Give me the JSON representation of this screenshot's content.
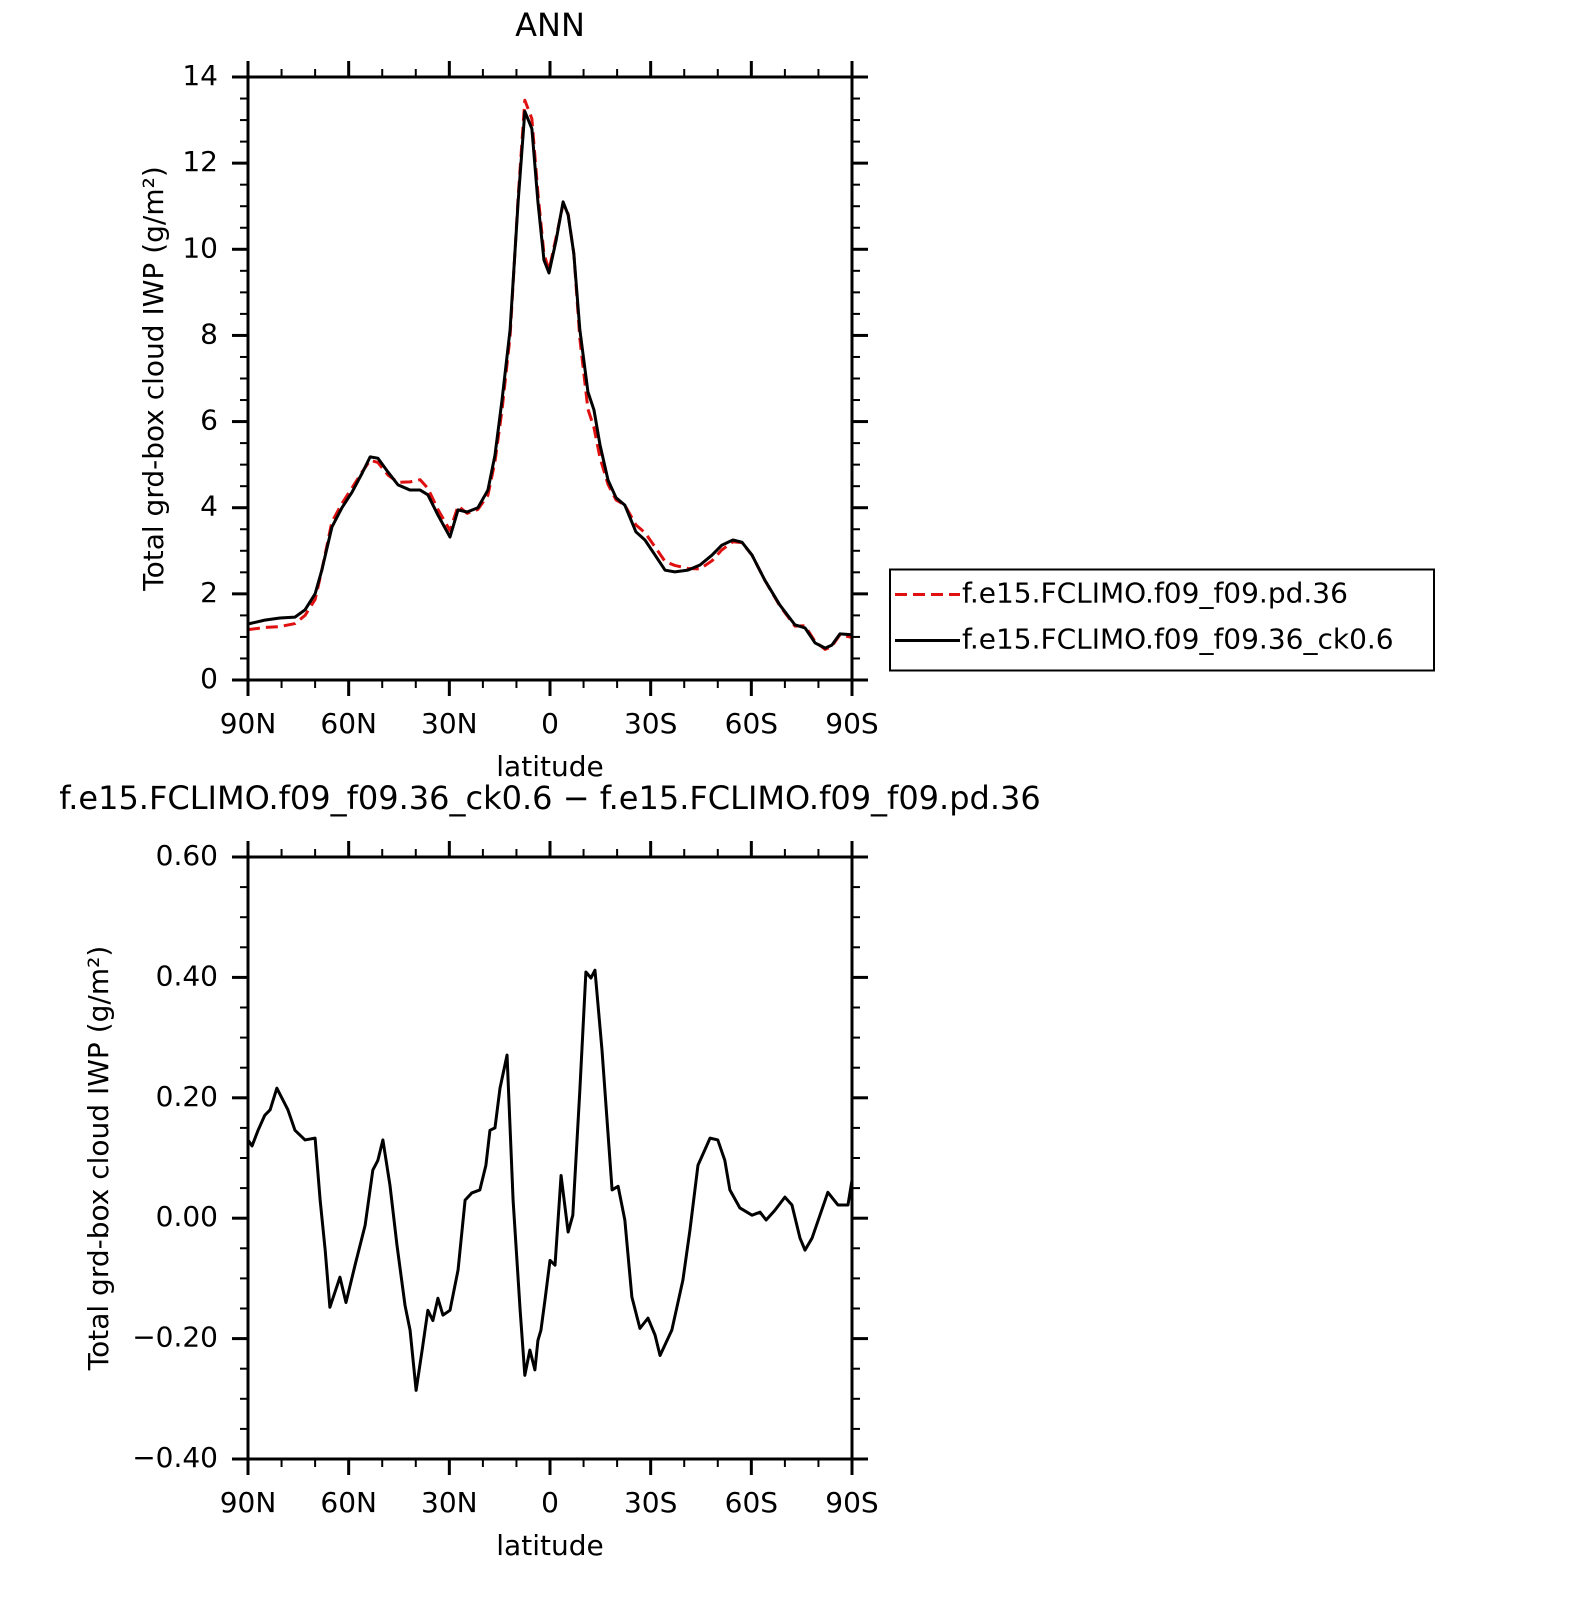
{
  "chart_data": [
    {
      "type": "line",
      "title": "ANN",
      "x_label": "latitude",
      "y_label": "Total grd-box cloud IWP (g/m²)",
      "x": [
        90,
        85,
        80.5,
        76,
        73,
        70,
        68,
        65,
        62,
        59,
        56,
        53.6,
        51.3,
        48.3,
        45.3,
        41.7,
        38.7,
        36.4,
        33.4,
        29.8,
        27.4,
        24.7,
        21.5,
        18.5,
        16.4,
        14.3,
        11.9,
        9.5,
        7.5,
        5.4,
        3.6,
        1.8,
        0.3,
        -1.8,
        -3.9,
        -5.4,
        -7.1,
        -8.9,
        -11.3,
        -13.1,
        -14.9,
        -17.3,
        -19.7,
        -22.3,
        -25.6,
        -28.3,
        -31.3,
        -34.3,
        -37.2,
        -41.1,
        -44.7,
        -48.3,
        -51.2,
        -54.5,
        -57.2,
        -60.2,
        -64,
        -68.5,
        -73,
        -76,
        -79,
        -82,
        -84,
        -86.4,
        -90
      ],
      "series": [
        {
          "name": "f.e15.FCLIMO.f09_f09.pd.36",
          "color": "#e01010",
          "dash": true,
          "values": [
            1.17,
            1.22,
            1.24,
            1.31,
            1.5,
            1.87,
            2.55,
            3.67,
            4.1,
            4.46,
            4.83,
            5.1,
            5.05,
            4.76,
            4.59,
            4.6,
            4.65,
            4.45,
            3.96,
            3.47,
            4.04,
            3.87,
            3.96,
            4.29,
            5.07,
            6.27,
            7.98,
            11.2,
            13.46,
            13.03,
            11.3,
            9.89,
            9.52,
            10.27,
            11.05,
            10.82,
            9.9,
            7.92,
            6.29,
            5.86,
            5.16,
            4.54,
            4.18,
            4.06,
            3.6,
            3.42,
            3.09,
            2.75,
            2.66,
            2.59,
            2.58,
            2.77,
            3.02,
            3.21,
            3.19,
            2.9,
            2.32,
            1.72,
            1.25,
            1.26,
            0.89,
            0.71,
            0.78,
            1.05,
            0.99
          ]
        },
        {
          "name": "f.e15.FCLIMO.f09_f09.36_ck0.6",
          "color": "#000000",
          "dash": false,
          "values": [
            1.3,
            1.39,
            1.44,
            1.46,
            1.63,
            2.0,
            2.55,
            3.55,
            4.0,
            4.36,
            4.8,
            5.18,
            5.15,
            4.83,
            4.53,
            4.41,
            4.41,
            4.3,
            3.83,
            3.32,
            3.95,
            3.9,
            4.0,
            4.41,
            5.22,
            6.5,
            8.13,
            11.1,
            13.2,
            12.8,
            11.1,
            9.75,
            9.45,
            10.2,
            11.1,
            10.8,
            9.9,
            8.13,
            6.69,
            6.27,
            5.46,
            4.64,
            4.23,
            4.06,
            3.44,
            3.25,
            2.9,
            2.55,
            2.51,
            2.55,
            2.67,
            2.9,
            3.13,
            3.25,
            3.2,
            2.9,
            2.32,
            1.74,
            1.28,
            1.21,
            0.86,
            0.74,
            0.81,
            1.07,
            1.05
          ]
        }
      ],
      "xlim": [
        90,
        -90
      ],
      "xticks": [
        {
          "value": 90,
          "label": "90N"
        },
        {
          "value": 60,
          "label": "60N"
        },
        {
          "value": 30,
          "label": "30N"
        },
        0,
        {
          "value": -30,
          "label": "30S"
        },
        {
          "value": -60,
          "label": "60S"
        },
        {
          "value": -90,
          "label": "90S"
        }
      ],
      "ylim": [
        0,
        14
      ],
      "yticks": [
        0,
        2,
        4,
        6,
        8,
        10,
        12,
        14
      ],
      "x_minor_per_interval": 3,
      "y_minor_per_interval": 4,
      "legend": "right"
    },
    {
      "type": "line",
      "title": "f.e15.FCLIMO.f09_f09.36_ck0.6 − f.e15.FCLIMO.f09_f09.pd.36",
      "x_label": "latitude",
      "y_label": "Total grd-box cloud IWP (g/m²)",
      "x": [
        90,
        88.8,
        87,
        85,
        83.4,
        81.4,
        78.1,
        76,
        73,
        70,
        68.5,
        67,
        65.6,
        62.6,
        60.8,
        58.1,
        55.1,
        52.8,
        51.3,
        49.8,
        47.7,
        45.6,
        43.2,
        41.7,
        39.9,
        38.1,
        36.4,
        34.9,
        33.4,
        31.9,
        29.8,
        27.4,
        25.3,
        23.3,
        20.9,
        19.1,
        17.9,
        16.4,
        14.9,
        12.8,
        11,
        8.9,
        7.5,
        6,
        4.5,
        3.6,
        2.7,
        1.5,
        0,
        -1.5,
        -3.3,
        -5.4,
        -6.8,
        -8.9,
        -10.7,
        -12.2,
        -13.4,
        -15.5,
        -18.5,
        -20.3,
        -22.3,
        -24.4,
        -26.8,
        -29.2,
        -31.3,
        -32.8,
        -36.3,
        -39.6,
        -41.7,
        -44.1,
        -47.7,
        -50,
        -52.1,
        -53.6,
        -56.6,
        -60.2,
        -62.6,
        -64.4,
        -67,
        -70,
        -72.1,
        -74.5,
        -76,
        -78.1,
        -82.8,
        -85.8,
        -88.8,
        -90
      ],
      "series": [
        {
          "color": "#000000",
          "dash": false,
          "values": [
            0.13,
            0.12,
            0.146,
            0.171,
            0.18,
            0.216,
            0.18,
            0.146,
            0.13,
            0.133,
            0.03,
            -0.053,
            -0.148,
            -0.098,
            -0.14,
            -0.078,
            -0.012,
            0.08,
            0.096,
            0.13,
            0.055,
            -0.045,
            -0.145,
            -0.186,
            -0.286,
            -0.219,
            -0.153,
            -0.17,
            -0.133,
            -0.161,
            -0.153,
            -0.086,
            0.03,
            0.042,
            0.047,
            0.088,
            0.146,
            0.15,
            0.216,
            0.271,
            0.03,
            -0.153,
            -0.261,
            -0.219,
            -0.252,
            -0.203,
            -0.186,
            -0.136,
            -0.07,
            -0.078,
            0.071,
            -0.023,
            0.005,
            0.213,
            0.409,
            0.399,
            0.412,
            0.279,
            0.047,
            0.053,
            -0.003,
            -0.131,
            -0.183,
            -0.166,
            -0.194,
            -0.228,
            -0.186,
            -0.103,
            -0.02,
            0.088,
            0.133,
            0.13,
            0.096,
            0.047,
            0.017,
            0.005,
            0.01,
            -0.003,
            0.013,
            0.035,
            0.022,
            -0.033,
            -0.053,
            -0.033,
            0.043,
            0.022,
            0.022,
            0.063
          ]
        }
      ],
      "xlim": [
        90,
        -90
      ],
      "xticks": [
        {
          "value": 90,
          "label": "90N"
        },
        {
          "value": 60,
          "label": "60N"
        },
        {
          "value": 30,
          "label": "30N"
        },
        0,
        {
          "value": -30,
          "label": "30S"
        },
        {
          "value": -60,
          "label": "60S"
        },
        {
          "value": -90,
          "label": "90S"
        }
      ],
      "ylim": [
        -0.4,
        0.6
      ],
      "yticks": [
        {
          "value": -0.4,
          "label": "−0.40"
        },
        {
          "value": -0.2,
          "label": "−0.20"
        },
        {
          "value": 0,
          "label": "0.00"
        },
        {
          "value": 0.2,
          "label": "0.20"
        },
        {
          "value": 0.4,
          "label": "0.40"
        },
        {
          "value": 0.6,
          "label": "0.60"
        }
      ],
      "x_minor_per_interval": 3,
      "y_minor_per_interval": 4
    }
  ]
}
